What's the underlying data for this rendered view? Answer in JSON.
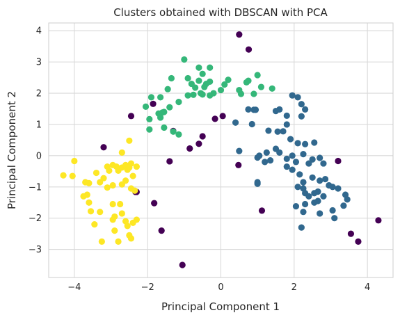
{
  "chart_data": {
    "type": "scatter",
    "title": "Clusters obtained with DBSCAN with PCA",
    "xlabel": "Principal Component 1",
    "ylabel": "Principal Component 2",
    "xlim": [
      -4.7,
      4.7
    ],
    "ylim": [
      -3.9,
      4.25
    ],
    "xticks": [
      -4,
      -2,
      0,
      2,
      4
    ],
    "yticks": [
      -3,
      -2,
      -1,
      0,
      1,
      2,
      3,
      4
    ],
    "xtick_labels": [
      "−4",
      "−2",
      "0",
      "2",
      "4"
    ],
    "ytick_labels": [
      "−3",
      "−2",
      "−1",
      "0",
      "1",
      "2",
      "3",
      "4"
    ],
    "grid": true,
    "colors": {
      "noise": "#440154",
      "cluster_0": "#31688e",
      "cluster_1": "#35b779",
      "cluster_2": "#fde725",
      "grid": "#d9d9d9",
      "spine": "#cccccc"
    },
    "series": [
      {
        "color_key": "noise",
        "points": [
          [
            0.5,
            3.88
          ],
          [
            0.76,
            3.4
          ],
          [
            -2.45,
            1.27
          ],
          [
            -3.2,
            0.27
          ],
          [
            -1.85,
            1.66
          ],
          [
            -1.3,
            0.79
          ],
          [
            -0.85,
            0.23
          ],
          [
            -0.6,
            0.38
          ],
          [
            -0.5,
            0.62
          ],
          [
            -0.16,
            1.18
          ],
          [
            0.05,
            1.27
          ],
          [
            0.48,
            -0.3
          ],
          [
            1.12,
            -1.76
          ],
          [
            -1.4,
            -0.18
          ],
          [
            -2.3,
            -1.16
          ],
          [
            -2.33,
            -1.16
          ],
          [
            -1.82,
            -1.52
          ],
          [
            -1.62,
            -2.4
          ],
          [
            -1.05,
            -3.5
          ],
          [
            3.2,
            -0.17
          ],
          [
            3.55,
            -2.5
          ],
          [
            3.75,
            -2.75
          ],
          [
            4.3,
            -2.07
          ]
        ]
      },
      {
        "color_key": "cluster_0",
        "points": [
          [
            0.75,
            1.48
          ],
          [
            0.9,
            1.47
          ],
          [
            0.95,
            1.47
          ],
          [
            1.5,
            1.43
          ],
          [
            1.6,
            1.48
          ],
          [
            1.95,
            1.93
          ],
          [
            2.1,
            1.87
          ],
          [
            2.2,
            1.65
          ],
          [
            2.3,
            1.48
          ],
          [
            0.4,
            1.06
          ],
          [
            0.85,
            1.01
          ],
          [
            1.3,
            0.8
          ],
          [
            1.55,
            0.77
          ],
          [
            1.7,
            0.78
          ],
          [
            1.8,
            1.28
          ],
          [
            1.8,
            1.0
          ],
          [
            2.2,
            1.26
          ],
          [
            1.9,
            0.53
          ],
          [
            2.1,
            0.4
          ],
          [
            2.3,
            0.37
          ],
          [
            2.55,
            0.42
          ],
          [
            1.5,
            0.22
          ],
          [
            1.05,
            0.0
          ],
          [
            1.0,
            -0.06
          ],
          [
            1.2,
            -0.2
          ],
          [
            1.35,
            -0.15
          ],
          [
            1.25,
            0.1
          ],
          [
            1.6,
            0.1
          ],
          [
            1.8,
            -0.1
          ],
          [
            1.95,
            0.0
          ],
          [
            2.05,
            -0.2
          ],
          [
            2.25,
            0.05
          ],
          [
            2.4,
            -0.25
          ],
          [
            2.5,
            -0.12
          ],
          [
            2.7,
            -0.07
          ],
          [
            2.8,
            -0.25
          ],
          [
            1.8,
            -0.35
          ],
          [
            1.95,
            -0.45
          ],
          [
            2.15,
            -0.6
          ],
          [
            2.25,
            -0.85
          ],
          [
            2.5,
            -0.7
          ],
          [
            2.7,
            -0.8
          ],
          [
            2.85,
            -0.75
          ],
          [
            2.95,
            -0.95
          ],
          [
            2.1,
            -1.0
          ],
          [
            2.25,
            -1.05
          ],
          [
            2.3,
            -1.2
          ],
          [
            2.4,
            -1.3
          ],
          [
            2.55,
            -1.2
          ],
          [
            2.65,
            -1.15
          ],
          [
            2.8,
            -1.3
          ],
          [
            3.05,
            -1.0
          ],
          [
            3.2,
            -1.05
          ],
          [
            3.4,
            -1.25
          ],
          [
            3.45,
            -1.4
          ],
          [
            3.35,
            -1.6
          ],
          [
            3.05,
            -1.75
          ],
          [
            2.55,
            -1.5
          ],
          [
            2.65,
            -1.45
          ],
          [
            2.3,
            -1.55
          ],
          [
            2.05,
            -1.62
          ],
          [
            2.25,
            -1.8
          ],
          [
            2.2,
            -2.3
          ],
          [
            2.7,
            -1.85
          ],
          [
            3.1,
            -2.0
          ],
          [
            1.0,
            -0.9
          ],
          [
            1.0,
            -0.85
          ],
          [
            0.5,
            0.15
          ]
        ]
      },
      {
        "color_key": "cluster_1",
        "points": [
          [
            -1.0,
            3.08
          ],
          [
            -0.6,
            2.82
          ],
          [
            -0.3,
            2.82
          ],
          [
            -1.35,
            2.48
          ],
          [
            -0.9,
            2.48
          ],
          [
            -0.8,
            2.3
          ],
          [
            -0.7,
            2.18
          ],
          [
            -0.55,
            2.0
          ],
          [
            -0.5,
            2.62
          ],
          [
            -0.4,
            2.3
          ],
          [
            -0.3,
            2.37
          ],
          [
            -0.2,
            2.0
          ],
          [
            0.1,
            2.28
          ],
          [
            0.2,
            2.43
          ],
          [
            0.55,
            1.98
          ],
          [
            0.7,
            2.35
          ],
          [
            0.75,
            2.4
          ],
          [
            1.0,
            2.58
          ],
          [
            1.1,
            2.2
          ],
          [
            0.9,
            1.98
          ],
          [
            1.4,
            2.15
          ],
          [
            0.5,
            2.1
          ],
          [
            -1.65,
            1.87
          ],
          [
            -1.45,
            2.13
          ],
          [
            -1.15,
            1.72
          ],
          [
            -0.9,
            1.93
          ],
          [
            -0.75,
            1.95
          ],
          [
            -0.5,
            1.96
          ],
          [
            -0.3,
            1.93
          ],
          [
            0.0,
            2.1
          ],
          [
            -0.6,
            2.4
          ],
          [
            -0.45,
            2.2
          ],
          [
            -2.05,
            1.57
          ],
          [
            -1.9,
            1.87
          ],
          [
            -1.7,
            1.35
          ],
          [
            -1.6,
            1.38
          ],
          [
            -1.55,
            1.4
          ],
          [
            -1.65,
            1.22
          ],
          [
            -1.4,
            1.55
          ],
          [
            -1.95,
            1.17
          ],
          [
            -1.95,
            0.84
          ],
          [
            -1.55,
            0.9
          ],
          [
            -1.3,
            0.77
          ],
          [
            -1.15,
            0.68
          ]
        ]
      },
      {
        "color_key": "cluster_2",
        "points": [
          [
            -4.3,
            -0.63
          ],
          [
            -4.0,
            -0.17
          ],
          [
            -4.05,
            -0.65
          ],
          [
            -3.7,
            -0.85
          ],
          [
            -3.6,
            -0.88
          ],
          [
            -3.65,
            -1.25
          ],
          [
            -3.75,
            -1.3
          ],
          [
            -3.6,
            -1.5
          ],
          [
            -3.4,
            -0.55
          ],
          [
            -3.1,
            -0.35
          ],
          [
            -2.95,
            -0.3
          ],
          [
            -3.05,
            -0.48
          ],
          [
            -2.85,
            -0.35
          ],
          [
            -3.2,
            -0.72
          ],
          [
            -3.3,
            -0.85
          ],
          [
            -3.1,
            -1.02
          ],
          [
            -2.95,
            -0.95
          ],
          [
            -2.8,
            -0.48
          ],
          [
            -2.7,
            -0.38
          ],
          [
            -2.6,
            -0.3
          ],
          [
            -2.55,
            -0.45
          ],
          [
            -2.45,
            -0.25
          ],
          [
            -2.5,
            -0.38
          ],
          [
            -2.3,
            -0.35
          ],
          [
            -2.4,
            -0.65
          ],
          [
            -2.6,
            -0.8
          ],
          [
            -2.7,
            -0.92
          ],
          [
            -2.45,
            -1.05
          ],
          [
            -2.7,
            0.1
          ],
          [
            -2.5,
            0.48
          ],
          [
            -3.55,
            -1.78
          ],
          [
            -3.3,
            -1.8
          ],
          [
            -2.95,
            -1.55
          ],
          [
            -2.9,
            -1.95
          ],
          [
            -2.95,
            -2.05
          ],
          [
            -2.75,
            -1.55
          ],
          [
            -2.7,
            -1.85
          ],
          [
            -2.6,
            -2.1
          ],
          [
            -2.55,
            -2.25
          ],
          [
            -2.4,
            -2.15
          ],
          [
            -2.3,
            -2.05
          ],
          [
            -2.5,
            -2.55
          ],
          [
            -2.45,
            -2.65
          ],
          [
            -2.9,
            -2.4
          ],
          [
            -3.25,
            -2.75
          ],
          [
            -2.8,
            -2.75
          ],
          [
            -3.45,
            -2.2
          ],
          [
            -2.35,
            -1.12
          ]
        ]
      }
    ]
  }
}
